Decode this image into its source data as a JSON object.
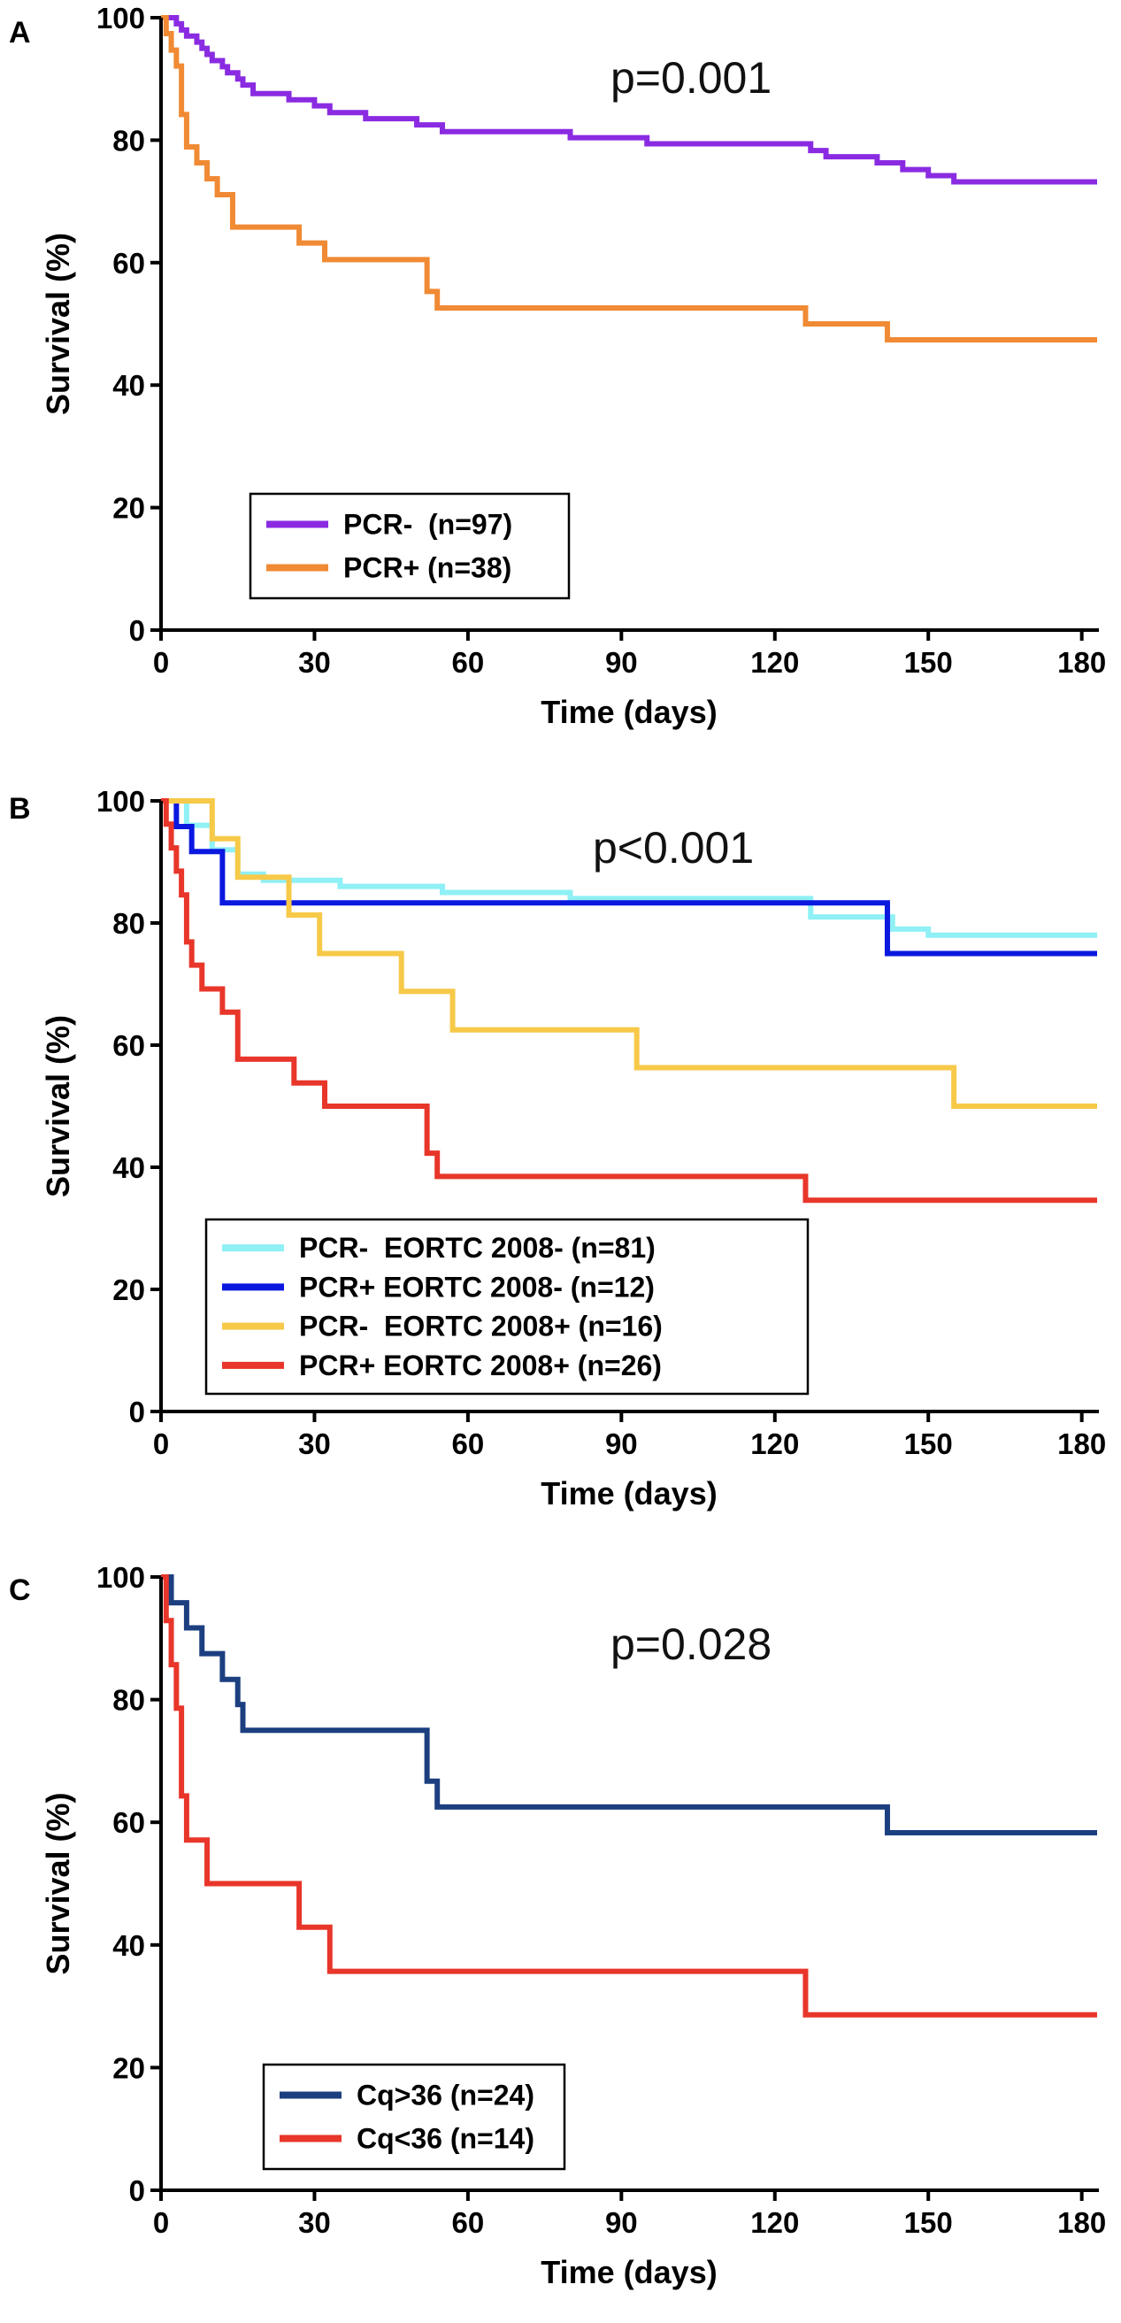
{
  "chart_data": [
    {
      "panel": "A",
      "type": "line",
      "step": true,
      "xlabel": "Time (days)",
      "ylabel": "Survival (%)",
      "xlim": [
        0,
        183
      ],
      "ylim": [
        0,
        100
      ],
      "xticks": [
        0,
        30,
        60,
        90,
        120,
        150,
        180
      ],
      "yticks": [
        0,
        20,
        40,
        60,
        80,
        100
      ],
      "annotation": "p=0.001",
      "series": [
        {
          "name": "PCR-  (n=97)",
          "color": "#8a2be2",
          "x": [
            0,
            3,
            4,
            5,
            7,
            8,
            9,
            10,
            12,
            13,
            15,
            16,
            18,
            25,
            30,
            33,
            40,
            50,
            55,
            80,
            95,
            127,
            130,
            140,
            145,
            150,
            155,
            183
          ],
          "y": [
            100,
            99,
            98,
            97,
            96,
            95,
            94,
            93,
            92,
            91,
            90,
            89,
            87.6,
            86.6,
            85.6,
            84.5,
            83.5,
            82.5,
            81.4,
            80.4,
            79.4,
            78.3,
            77.3,
            76.3,
            75.2,
            74.2,
            73.2,
            73.2
          ]
        },
        {
          "name": "PCR+ (n=38)",
          "color": "#f08a34",
          "x": [
            0,
            1,
            2,
            3,
            4,
            5,
            7,
            9,
            11,
            14,
            27,
            32,
            52,
            54,
            126,
            142,
            183
          ],
          "y": [
            100,
            97.4,
            94.7,
            92.1,
            84.2,
            78.9,
            76.3,
            73.7,
            71.1,
            65.8,
            63.2,
            60.5,
            55.3,
            52.6,
            50,
            47.4,
            47.4
          ]
        }
      ]
    },
    {
      "panel": "B",
      "type": "line",
      "step": true,
      "xlabel": "Time (days)",
      "ylabel": "Survival (%)",
      "xlim": [
        0,
        183
      ],
      "ylim": [
        0,
        100
      ],
      "xticks": [
        0,
        30,
        60,
        90,
        120,
        150,
        180
      ],
      "yticks": [
        0,
        20,
        40,
        60,
        80,
        100
      ],
      "annotation": "p<0.001",
      "series": [
        {
          "name": "PCR-  EORTC 2008- (n=81)",
          "color": "#8ff0f5",
          "x": [
            0,
            5,
            10,
            15,
            20,
            35,
            55,
            80,
            127,
            143,
            150,
            183
          ],
          "y": [
            100,
            96,
            92,
            88,
            87,
            86,
            85,
            84,
            81,
            79,
            78,
            78
          ]
        },
        {
          "name": "PCR+ EORTC 2008- (n=12)",
          "color": "#0a18e0",
          "x": [
            0,
            3,
            6,
            12,
            80,
            142,
            183
          ],
          "y": [
            100,
            95.8,
            91.7,
            83.3,
            83.3,
            75,
            75
          ]
        },
        {
          "name": "PCR-  EORTC 2008+ (n=16)",
          "color": "#f7c948",
          "x": [
            0,
            10,
            15,
            25,
            31,
            47,
            57,
            93,
            155,
            183
          ],
          "y": [
            100,
            93.8,
            87.5,
            81.3,
            75,
            68.8,
            62.5,
            56.3,
            50,
            50
          ]
        },
        {
          "name": "PCR+ EORTC 2008+ (n=26)",
          "color": "#e8362a",
          "x": [
            0,
            1,
            2,
            3,
            4,
            5,
            6,
            8,
            12,
            15,
            26,
            32,
            52,
            54,
            126,
            183
          ],
          "y": [
            100,
            96.2,
            92.3,
            88.5,
            84.6,
            76.9,
            73.1,
            69.2,
            65.4,
            57.7,
            53.8,
            50,
            42.3,
            38.5,
            34.6,
            34.6
          ]
        }
      ]
    },
    {
      "panel": "C",
      "type": "line",
      "step": true,
      "xlabel": "Time (days)",
      "ylabel": "Survival (%)",
      "xlim": [
        0,
        183
      ],
      "ylim": [
        0,
        100
      ],
      "xticks": [
        0,
        30,
        60,
        90,
        120,
        150,
        180
      ],
      "yticks": [
        0,
        20,
        40,
        60,
        80,
        100
      ],
      "annotation": "p=0.028",
      "series": [
        {
          "name": "Cq>36 (n=24)",
          "color": "#1c3f80",
          "x": [
            0,
            2,
            5,
            8,
            12,
            15,
            16,
            52,
            54,
            142,
            183
          ],
          "y": [
            100,
            95.8,
            91.7,
            87.5,
            83.3,
            79.2,
            75,
            66.7,
            62.5,
            58.3,
            58.3
          ]
        },
        {
          "name": "Cq<36 (n=14)",
          "color": "#e8362a",
          "x": [
            0,
            1,
            2,
            3,
            4,
            5,
            9,
            27,
            33,
            126,
            183
          ],
          "y": [
            100,
            92.9,
            85.7,
            78.6,
            64.3,
            57.1,
            50,
            42.9,
            35.7,
            28.6,
            28.6
          ]
        }
      ]
    }
  ]
}
